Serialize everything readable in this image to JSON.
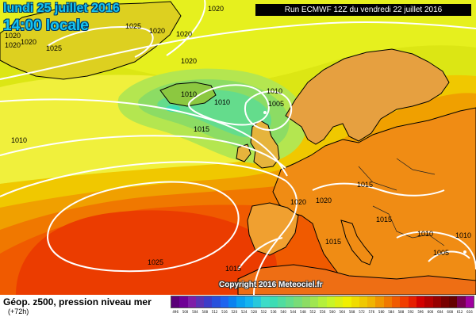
{
  "header": {
    "date": "lundi 25 juillet 2016",
    "time": "14:00 locale",
    "run": "Run ECMWF 12Z du vendredi 22 juillet 2016"
  },
  "map": {
    "pressure_labels": [
      {
        "text": "1020"
      },
      {
        "text": "1020"
      },
      {
        "text": "1020"
      },
      {
        "text": "1025"
      },
      {
        "text": "1020"
      },
      {
        "text": "1025"
      },
      {
        "text": "1020"
      },
      {
        "text": "1020"
      },
      {
        "text": "1020"
      },
      {
        "text": "1010"
      },
      {
        "text": "1010"
      },
      {
        "text": "1010"
      },
      {
        "text": "1005"
      },
      {
        "text": "1015"
      },
      {
        "text": "1010"
      },
      {
        "text": "1015"
      },
      {
        "text": "1020"
      },
      {
        "text": "1020"
      },
      {
        "text": "1015"
      },
      {
        "text": "1015"
      },
      {
        "text": "1010"
      },
      {
        "text": "1010"
      },
      {
        "text": "1005"
      },
      {
        "text": "1025"
      },
      {
        "text": "1015"
      }
    ],
    "copyright": "Copyright 2016 Meteociel.fr"
  },
  "footer": {
    "title": "Géop. z500, pression niveau mer",
    "subtitle": "(+72h)"
  },
  "legend": {
    "colors": [
      "#5a0078",
      "#6e0096",
      "#7e1ea8",
      "#5a32b4",
      "#3c3cc8",
      "#2850dc",
      "#1e64f0",
      "#0a82f0",
      "#0aa0f0",
      "#14b4f0",
      "#28c8dc",
      "#3cdcc8",
      "#3cdcb4",
      "#50dca0",
      "#64dc8c",
      "#78dc78",
      "#8cdc64",
      "#a0e650",
      "#b4f03c",
      "#c8f528",
      "#dcf014",
      "#f0f000",
      "#f0dc00",
      "#f0c800",
      "#f0b400",
      "#f09600",
      "#f07800",
      "#f05a00",
      "#f03c00",
      "#e61e00",
      "#d20000",
      "#b40000",
      "#960000",
      "#780000",
      "#640000",
      "#780050",
      "#a000a0"
    ],
    "ticks": [
      "496",
      "500",
      "504",
      "508",
      "512",
      "516",
      "520",
      "524",
      "528",
      "532",
      "536",
      "540",
      "544",
      "548",
      "552",
      "556",
      "560",
      "564",
      "568",
      "572",
      "576",
      "580",
      "584",
      "588",
      "592",
      "596",
      "600",
      "604",
      "608",
      "612",
      "616"
    ]
  }
}
